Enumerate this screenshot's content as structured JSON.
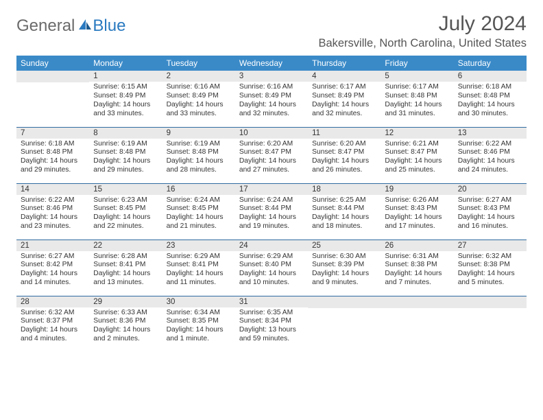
{
  "logo": {
    "text1": "General",
    "text2": "Blue"
  },
  "title": "July 2024",
  "location": "Bakersville, North Carolina, United States",
  "colors": {
    "header_bg": "#3a8ac8",
    "header_fg": "#ffffff",
    "daynum_bg": "#e9e9e9",
    "row_border": "#2f6aa0",
    "logo_blue": "#2a7ac0",
    "logo_gray": "#6a6a6a"
  },
  "weekdays": [
    "Sunday",
    "Monday",
    "Tuesday",
    "Wednesday",
    "Thursday",
    "Friday",
    "Saturday"
  ],
  "weeks": [
    [
      null,
      {
        "n": "1",
        "sr": "6:15 AM",
        "ss": "8:49 PM",
        "dl": "14 hours and 33 minutes."
      },
      {
        "n": "2",
        "sr": "6:16 AM",
        "ss": "8:49 PM",
        "dl": "14 hours and 33 minutes."
      },
      {
        "n": "3",
        "sr": "6:16 AM",
        "ss": "8:49 PM",
        "dl": "14 hours and 32 minutes."
      },
      {
        "n": "4",
        "sr": "6:17 AM",
        "ss": "8:49 PM",
        "dl": "14 hours and 32 minutes."
      },
      {
        "n": "5",
        "sr": "6:17 AM",
        "ss": "8:48 PM",
        "dl": "14 hours and 31 minutes."
      },
      {
        "n": "6",
        "sr": "6:18 AM",
        "ss": "8:48 PM",
        "dl": "14 hours and 30 minutes."
      }
    ],
    [
      {
        "n": "7",
        "sr": "6:18 AM",
        "ss": "8:48 PM",
        "dl": "14 hours and 29 minutes."
      },
      {
        "n": "8",
        "sr": "6:19 AM",
        "ss": "8:48 PM",
        "dl": "14 hours and 29 minutes."
      },
      {
        "n": "9",
        "sr": "6:19 AM",
        "ss": "8:48 PM",
        "dl": "14 hours and 28 minutes."
      },
      {
        "n": "10",
        "sr": "6:20 AM",
        "ss": "8:47 PM",
        "dl": "14 hours and 27 minutes."
      },
      {
        "n": "11",
        "sr": "6:20 AM",
        "ss": "8:47 PM",
        "dl": "14 hours and 26 minutes."
      },
      {
        "n": "12",
        "sr": "6:21 AM",
        "ss": "8:47 PM",
        "dl": "14 hours and 25 minutes."
      },
      {
        "n": "13",
        "sr": "6:22 AM",
        "ss": "8:46 PM",
        "dl": "14 hours and 24 minutes."
      }
    ],
    [
      {
        "n": "14",
        "sr": "6:22 AM",
        "ss": "8:46 PM",
        "dl": "14 hours and 23 minutes."
      },
      {
        "n": "15",
        "sr": "6:23 AM",
        "ss": "8:45 PM",
        "dl": "14 hours and 22 minutes."
      },
      {
        "n": "16",
        "sr": "6:24 AM",
        "ss": "8:45 PM",
        "dl": "14 hours and 21 minutes."
      },
      {
        "n": "17",
        "sr": "6:24 AM",
        "ss": "8:44 PM",
        "dl": "14 hours and 19 minutes."
      },
      {
        "n": "18",
        "sr": "6:25 AM",
        "ss": "8:44 PM",
        "dl": "14 hours and 18 minutes."
      },
      {
        "n": "19",
        "sr": "6:26 AM",
        "ss": "8:43 PM",
        "dl": "14 hours and 17 minutes."
      },
      {
        "n": "20",
        "sr": "6:27 AM",
        "ss": "8:43 PM",
        "dl": "14 hours and 16 minutes."
      }
    ],
    [
      {
        "n": "21",
        "sr": "6:27 AM",
        "ss": "8:42 PM",
        "dl": "14 hours and 14 minutes."
      },
      {
        "n": "22",
        "sr": "6:28 AM",
        "ss": "8:41 PM",
        "dl": "14 hours and 13 minutes."
      },
      {
        "n": "23",
        "sr": "6:29 AM",
        "ss": "8:41 PM",
        "dl": "14 hours and 11 minutes."
      },
      {
        "n": "24",
        "sr": "6:29 AM",
        "ss": "8:40 PM",
        "dl": "14 hours and 10 minutes."
      },
      {
        "n": "25",
        "sr": "6:30 AM",
        "ss": "8:39 PM",
        "dl": "14 hours and 9 minutes."
      },
      {
        "n": "26",
        "sr": "6:31 AM",
        "ss": "8:38 PM",
        "dl": "14 hours and 7 minutes."
      },
      {
        "n": "27",
        "sr": "6:32 AM",
        "ss": "8:38 PM",
        "dl": "14 hours and 5 minutes."
      }
    ],
    [
      {
        "n": "28",
        "sr": "6:32 AM",
        "ss": "8:37 PM",
        "dl": "14 hours and 4 minutes."
      },
      {
        "n": "29",
        "sr": "6:33 AM",
        "ss": "8:36 PM",
        "dl": "14 hours and 2 minutes."
      },
      {
        "n": "30",
        "sr": "6:34 AM",
        "ss": "8:35 PM",
        "dl": "14 hours and 1 minute."
      },
      {
        "n": "31",
        "sr": "6:35 AM",
        "ss": "8:34 PM",
        "dl": "13 hours and 59 minutes."
      },
      null,
      null,
      null
    ]
  ],
  "labels": {
    "sunrise": "Sunrise:",
    "sunset": "Sunset:",
    "daylight": "Daylight:"
  }
}
